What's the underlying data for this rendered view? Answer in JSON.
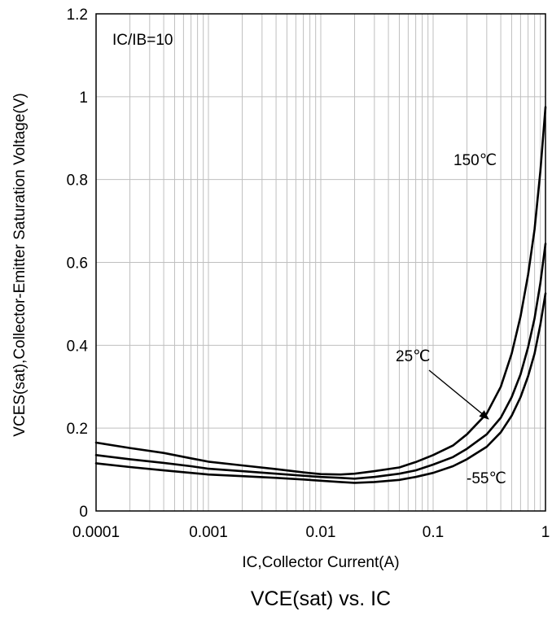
{
  "chart_data": {
    "type": "line",
    "title": "VCE(sat) vs. IC",
    "xlabel": "IC,Collector Current(A)",
    "ylabel": "VCES(sat),Collector-Emitter Saturation Voltage(V)",
    "x_scale": "log",
    "xlim": [
      0.0001,
      1
    ],
    "ylim": [
      0,
      1.2
    ],
    "x_ticks": [
      {
        "value": 0.0001,
        "label": "0.0001"
      },
      {
        "value": 0.001,
        "label": "0.001"
      },
      {
        "value": 0.01,
        "label": "0.01"
      },
      {
        "value": 0.1,
        "label": "0.1"
      },
      {
        "value": 1,
        "label": "1"
      }
    ],
    "y_ticks": [
      {
        "value": 0,
        "label": "0"
      },
      {
        "value": 0.2,
        "label": "0.2"
      },
      {
        "value": 0.4,
        "label": "0.4"
      },
      {
        "value": 0.6,
        "label": "0.6"
      },
      {
        "value": 0.8,
        "label": "0.8"
      },
      {
        "value": 1.0,
        "label": "1"
      },
      {
        "value": 1.2,
        "label": "1.2"
      }
    ],
    "grid": true,
    "condition_label": "IC/IB=10",
    "series": [
      {
        "name": "150℃",
        "color": "#000000",
        "points": [
          [
            0.0001,
            0.165
          ],
          [
            0.0002,
            0.152
          ],
          [
            0.0004,
            0.14
          ],
          [
            0.0007,
            0.127
          ],
          [
            0.001,
            0.119
          ],
          [
            0.002,
            0.11
          ],
          [
            0.004,
            0.101
          ],
          [
            0.007,
            0.093
          ],
          [
            0.01,
            0.089
          ],
          [
            0.015,
            0.088
          ],
          [
            0.02,
            0.09
          ],
          [
            0.03,
            0.096
          ],
          [
            0.05,
            0.105
          ],
          [
            0.07,
            0.118
          ],
          [
            0.1,
            0.135
          ],
          [
            0.15,
            0.158
          ],
          [
            0.2,
            0.185
          ],
          [
            0.3,
            0.235
          ],
          [
            0.4,
            0.3
          ],
          [
            0.5,
            0.38
          ],
          [
            0.6,
            0.47
          ],
          [
            0.7,
            0.57
          ],
          [
            0.8,
            0.68
          ],
          [
            0.9,
            0.82
          ],
          [
            1.0,
            0.975
          ]
        ]
      },
      {
        "name": "25℃",
        "color": "#000000",
        "points": [
          [
            0.0001,
            0.135
          ],
          [
            0.0002,
            0.125
          ],
          [
            0.0004,
            0.116
          ],
          [
            0.0007,
            0.108
          ],
          [
            0.001,
            0.102
          ],
          [
            0.002,
            0.096
          ],
          [
            0.004,
            0.09
          ],
          [
            0.007,
            0.085
          ],
          [
            0.01,
            0.082
          ],
          [
            0.015,
            0.08
          ],
          [
            0.02,
            0.078
          ],
          [
            0.03,
            0.082
          ],
          [
            0.05,
            0.09
          ],
          [
            0.07,
            0.098
          ],
          [
            0.1,
            0.112
          ],
          [
            0.15,
            0.13
          ],
          [
            0.2,
            0.15
          ],
          [
            0.3,
            0.185
          ],
          [
            0.4,
            0.225
          ],
          [
            0.5,
            0.275
          ],
          [
            0.6,
            0.33
          ],
          [
            0.7,
            0.395
          ],
          [
            0.8,
            0.465
          ],
          [
            0.9,
            0.55
          ],
          [
            1.0,
            0.645
          ]
        ]
      },
      {
        "name": "-55℃",
        "color": "#000000",
        "points": [
          [
            0.0001,
            0.115
          ],
          [
            0.0002,
            0.106
          ],
          [
            0.0004,
            0.098
          ],
          [
            0.0007,
            0.092
          ],
          [
            0.001,
            0.088
          ],
          [
            0.002,
            0.084
          ],
          [
            0.004,
            0.08
          ],
          [
            0.007,
            0.076
          ],
          [
            0.01,
            0.073
          ],
          [
            0.015,
            0.07
          ],
          [
            0.02,
            0.068
          ],
          [
            0.03,
            0.07
          ],
          [
            0.05,
            0.075
          ],
          [
            0.07,
            0.082
          ],
          [
            0.1,
            0.092
          ],
          [
            0.15,
            0.108
          ],
          [
            0.2,
            0.125
          ],
          [
            0.3,
            0.155
          ],
          [
            0.4,
            0.19
          ],
          [
            0.5,
            0.23
          ],
          [
            0.6,
            0.275
          ],
          [
            0.7,
            0.325
          ],
          [
            0.8,
            0.38
          ],
          [
            0.9,
            0.45
          ],
          [
            1.0,
            0.525
          ]
        ]
      }
    ],
    "annotations": [
      {
        "text": "150℃",
        "series": "150℃"
      },
      {
        "text": "25℃",
        "series": "25℃",
        "arrow": true
      },
      {
        "text": "-55℃",
        "series": "-55℃"
      }
    ]
  }
}
